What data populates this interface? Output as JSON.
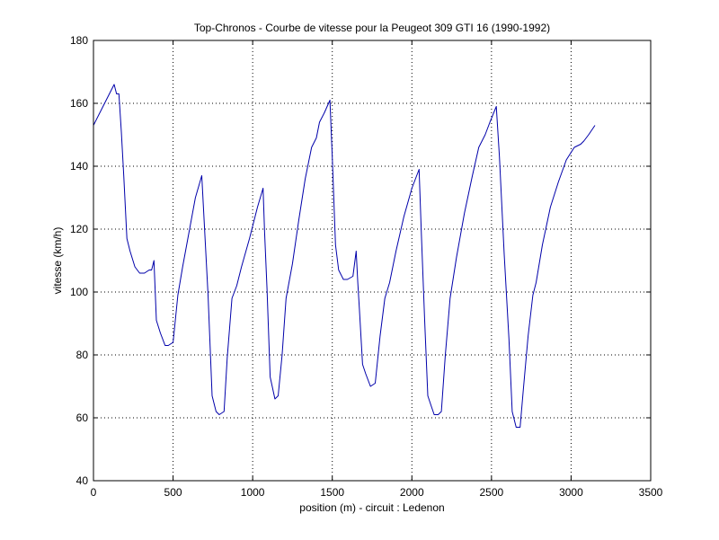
{
  "chart_data": {
    "type": "line",
    "title": "Top-Chronos - Courbe de vitesse pour la Peugeot 309 GTI 16 (1990-1992)",
    "xlabel": "position (m) - circuit : Ledenon",
    "ylabel": "vitesse (km/h)",
    "xlim": [
      0,
      3500
    ],
    "ylim": [
      40,
      180
    ],
    "xticks": [
      0,
      500,
      1000,
      1500,
      2000,
      2500,
      3000,
      3500
    ],
    "yticks": [
      40,
      60,
      80,
      100,
      120,
      140,
      160,
      180
    ],
    "grid": "dotted",
    "line_color": "#0000aa",
    "series": [
      {
        "x": [
          0,
          60,
          130,
          145,
          160,
          175,
          190,
          210,
          230,
          260,
          290,
          320,
          350,
          365,
          380,
          395,
          420,
          450,
          470,
          500,
          530,
          560,
          600,
          640,
          680,
          700,
          720,
          745,
          770,
          790,
          820,
          840,
          870,
          900,
          930,
          980,
          1030,
          1065,
          1075,
          1090,
          1110,
          1140,
          1160,
          1185,
          1210,
          1250,
          1290,
          1330,
          1370,
          1400,
          1420,
          1450,
          1485,
          1500,
          1520,
          1540,
          1570,
          1595,
          1630,
          1650,
          1660,
          1670,
          1690,
          1710,
          1740,
          1770,
          1800,
          1830,
          1860,
          1900,
          1950,
          2000,
          2045,
          2060,
          2080,
          2100,
          2120,
          2140,
          2165,
          2185,
          2210,
          2240,
          2280,
          2330,
          2380,
          2420,
          2460,
          2490,
          2530,
          2550,
          2580,
          2610,
          2630,
          2655,
          2680,
          2700,
          2730,
          2760,
          2780,
          2820,
          2870,
          2920,
          2970,
          3020,
          3060,
          3080,
          3110,
          3150
        ],
        "y": [
          153,
          159,
          166,
          163,
          163,
          151,
          137,
          117,
          113,
          108,
          106,
          106,
          107,
          107,
          110,
          91,
          87,
          83,
          83,
          84,
          99,
          108,
          119,
          130,
          137,
          118,
          99,
          67,
          62,
          61,
          62,
          79,
          98,
          102,
          108,
          117,
          127,
          133,
          119,
          101,
          73,
          66,
          67,
          80,
          98,
          109,
          123,
          136,
          146,
          149,
          154,
          157,
          161,
          143,
          115,
          107,
          104,
          104,
          105,
          113,
          103,
          95,
          77,
          74,
          70,
          71,
          86,
          98,
          103,
          113,
          124,
          133,
          139,
          118,
          91,
          67,
          64,
          61,
          61,
          62,
          80,
          98,
          111,
          125,
          137,
          146,
          150,
          154,
          159,
          143,
          112,
          85,
          62,
          57,
          57,
          69,
          86,
          99,
          103,
          115,
          127,
          135,
          142,
          146,
          147,
          148,
          150,
          153
        ]
      }
    ]
  }
}
